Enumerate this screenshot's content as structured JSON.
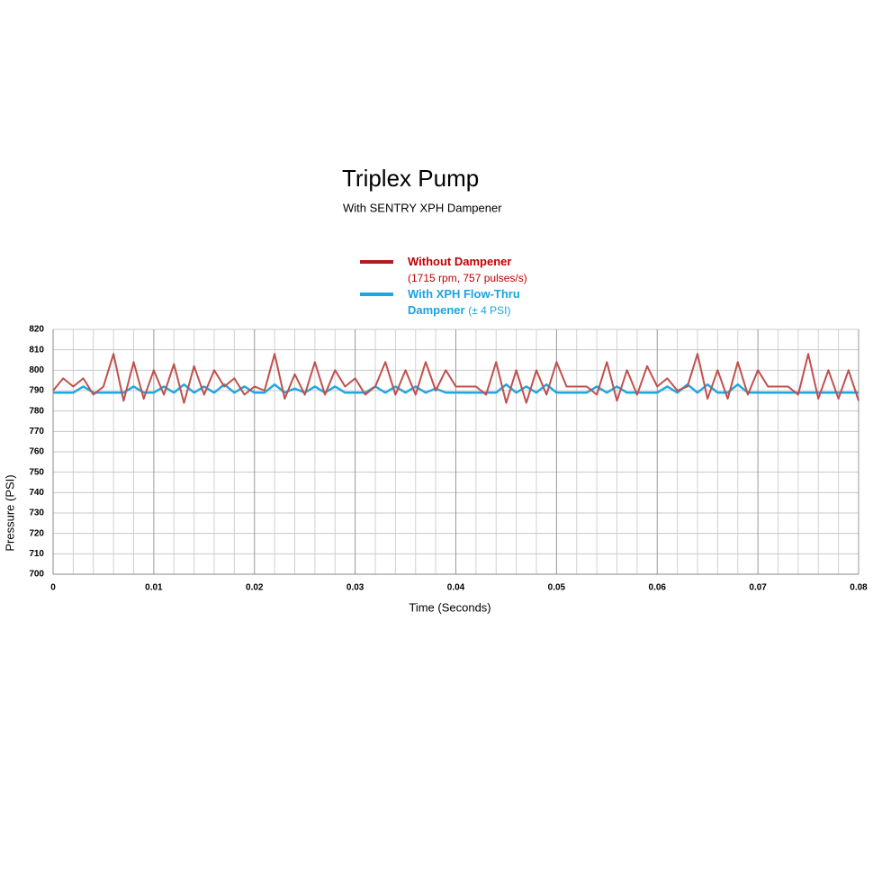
{
  "chart_data": {
    "type": "line",
    "title": "Triplex Pump",
    "subtitle": "With SENTRY XPH Dampener",
    "x_label": "Time (Seconds)",
    "y_label": "Pressure (PSI)",
    "x": [
      0,
      0.001,
      0.002,
      0.003,
      0.004,
      0.005,
      0.006,
      0.007,
      0.008,
      0.009,
      0.01,
      0.011,
      0.012,
      0.013,
      0.014,
      0.015,
      0.016,
      0.017,
      0.018,
      0.019,
      0.02,
      0.021,
      0.022,
      0.023,
      0.024,
      0.025,
      0.026,
      0.027,
      0.028,
      0.029,
      0.03,
      0.031,
      0.032,
      0.033,
      0.034,
      0.035,
      0.036,
      0.037,
      0.038,
      0.039,
      0.04,
      0.041,
      0.042,
      0.043,
      0.044,
      0.045,
      0.046,
      0.047,
      0.048,
      0.049,
      0.05,
      0.051,
      0.052,
      0.053,
      0.054,
      0.055,
      0.056,
      0.057,
      0.058,
      0.059,
      0.06,
      0.061,
      0.062,
      0.063,
      0.064,
      0.065,
      0.066,
      0.067,
      0.068,
      0.069,
      0.07,
      0.071,
      0.072,
      0.073,
      0.074,
      0.075,
      0.076,
      0.077,
      0.078,
      0.079,
      0.08
    ],
    "series": [
      {
        "name": "Without Dampener",
        "note": "(1715 rpm, 757 pulses/s)",
        "color": "#c0504d",
        "legend_color": "#b01e1e",
        "text_color": "#c00000",
        "values": [
          790,
          796,
          792,
          796,
          788,
          792,
          808,
          785,
          804,
          786,
          800,
          788,
          803,
          784,
          802,
          788,
          800,
          792,
          796,
          788,
          792,
          790,
          808,
          786,
          798,
          788,
          804,
          788,
          800,
          792,
          796,
          788,
          792,
          804,
          788,
          800,
          788,
          804,
          790,
          800,
          792,
          792,
          792,
          788,
          804,
          784,
          800,
          784,
          800,
          788,
          804,
          792,
          792,
          792,
          788,
          804,
          785,
          800,
          788,
          802,
          792,
          796,
          790,
          792,
          808,
          786,
          800,
          786,
          804,
          788,
          800,
          792,
          792,
          792,
          788,
          808,
          786,
          800,
          786,
          800,
          785
        ]
      },
      {
        "name": "With XPH Flow-Thru Dampener",
        "note": "(± 4 PSI)",
        "color": "#1fa8e0",
        "legend_color": "#1fa8e0",
        "text_color": "#1aa3e0",
        "values": [
          789,
          789,
          789,
          792,
          789,
          789,
          789,
          789,
          792,
          789,
          789,
          792,
          789,
          793,
          789,
          792,
          789,
          793,
          789,
          792,
          789,
          789,
          793,
          789,
          791,
          789,
          792,
          789,
          792,
          789,
          789,
          789,
          792,
          789,
          792,
          789,
          792,
          789,
          791,
          789,
          789,
          789,
          789,
          789,
          789,
          793,
          789,
          792,
          789,
          793,
          789,
          789,
          789,
          789,
          792,
          789,
          792,
          789,
          789,
          789,
          789,
          792,
          789,
          793,
          789,
          793,
          789,
          789,
          793,
          789,
          789,
          789,
          789,
          789,
          789,
          789,
          789,
          789,
          789,
          789,
          789
        ]
      }
    ],
    "xlim": [
      0,
      0.08
    ],
    "ylim": [
      700,
      820
    ],
    "xticks": [
      0,
      0.01,
      0.02,
      0.03,
      0.04,
      0.05,
      0.06,
      0.07,
      0.08
    ],
    "xminorticks": [
      0.002,
      0.004,
      0.006,
      0.008,
      0.012,
      0.014,
      0.016,
      0.018,
      0.022,
      0.024,
      0.026,
      0.028,
      0.032,
      0.034,
      0.036,
      0.038,
      0.042,
      0.044,
      0.046,
      0.048,
      0.052,
      0.054,
      0.056,
      0.058,
      0.062,
      0.064,
      0.066,
      0.068,
      0.072,
      0.074,
      0.076,
      0.078
    ],
    "yticks": [
      700,
      710,
      720,
      730,
      740,
      750,
      760,
      770,
      780,
      790,
      800,
      810,
      820
    ],
    "grid": true
  }
}
